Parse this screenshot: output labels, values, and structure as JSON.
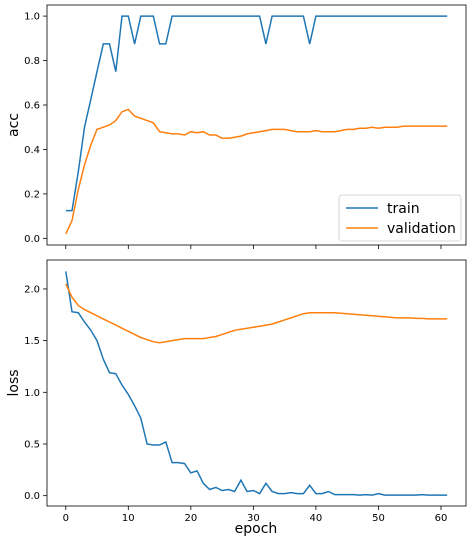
{
  "colors": {
    "train": "#1f77b4",
    "validation": "#ff7f0e"
  },
  "chart_data": [
    {
      "type": "line",
      "title": "",
      "xlabel": "",
      "ylabel": "acc",
      "xlim": [
        -3,
        64
      ],
      "ylim": [
        -0.03,
        1.05
      ],
      "xticks": [
        0,
        10,
        20,
        30,
        40,
        50,
        60
      ],
      "xticklabels_visible": false,
      "yticks": [
        0.0,
        0.2,
        0.4,
        0.6,
        0.8,
        1.0
      ],
      "yticklabels": [
        "0.0",
        "0.2",
        "0.4",
        "0.6",
        "0.8",
        "1.0"
      ],
      "grid": false,
      "legend": {
        "placement": "lower-right",
        "entries": [
          "train",
          "validation"
        ]
      },
      "series": [
        {
          "name": "train",
          "color": "#1f77b4",
          "x": [
            0,
            1,
            2,
            3,
            4,
            5,
            6,
            7,
            8,
            9,
            10,
            11,
            12,
            13,
            14,
            15,
            16,
            17,
            18,
            19,
            20,
            21,
            22,
            23,
            24,
            25,
            26,
            27,
            28,
            29,
            30,
            31,
            32,
            33,
            34,
            35,
            36,
            37,
            38,
            39,
            40,
            41,
            42,
            43,
            44,
            45,
            46,
            47,
            48,
            49,
            50,
            51,
            52,
            53,
            54,
            55,
            56,
            57,
            58,
            59,
            60,
            61
          ],
          "values": [
            0.125,
            0.125,
            0.3,
            0.5,
            0.625,
            0.75,
            0.875,
            0.875,
            0.75,
            1.0,
            1.0,
            0.875,
            1.0,
            1.0,
            1.0,
            0.875,
            0.875,
            1.0,
            1.0,
            1.0,
            1.0,
            1.0,
            1.0,
            1.0,
            1.0,
            1.0,
            1.0,
            1.0,
            1.0,
            1.0,
            1.0,
            1.0,
            0.875,
            1.0,
            1.0,
            1.0,
            1.0,
            1.0,
            1.0,
            0.875,
            1.0,
            1.0,
            1.0,
            1.0,
            1.0,
            1.0,
            1.0,
            1.0,
            1.0,
            1.0,
            1.0,
            1.0,
            1.0,
            1.0,
            1.0,
            1.0,
            1.0,
            1.0,
            1.0,
            1.0,
            1.0,
            1.0
          ]
        },
        {
          "name": "validation",
          "color": "#ff7f0e",
          "x": [
            0,
            1,
            2,
            3,
            4,
            5,
            6,
            7,
            8,
            9,
            10,
            11,
            12,
            13,
            14,
            15,
            16,
            17,
            18,
            19,
            20,
            21,
            22,
            23,
            24,
            25,
            26,
            27,
            28,
            29,
            30,
            31,
            32,
            33,
            34,
            35,
            36,
            37,
            38,
            39,
            40,
            41,
            42,
            43,
            44,
            45,
            46,
            47,
            48,
            49,
            50,
            51,
            52,
            53,
            54,
            55,
            56,
            57,
            58,
            59,
            60,
            61
          ],
          "values": [
            0.02,
            0.08,
            0.22,
            0.33,
            0.42,
            0.49,
            0.5,
            0.51,
            0.53,
            0.57,
            0.58,
            0.55,
            0.54,
            0.53,
            0.52,
            0.48,
            0.475,
            0.47,
            0.47,
            0.465,
            0.48,
            0.475,
            0.48,
            0.465,
            0.465,
            0.45,
            0.45,
            0.455,
            0.46,
            0.47,
            0.475,
            0.48,
            0.485,
            0.49,
            0.49,
            0.49,
            0.485,
            0.48,
            0.48,
            0.48,
            0.485,
            0.48,
            0.48,
            0.48,
            0.485,
            0.49,
            0.49,
            0.495,
            0.495,
            0.5,
            0.495,
            0.5,
            0.5,
            0.5,
            0.505,
            0.505,
            0.505,
            0.505,
            0.505,
            0.505,
            0.505,
            0.505
          ]
        }
      ]
    },
    {
      "type": "line",
      "title": "",
      "xlabel": "epoch",
      "ylabel": "loss",
      "xlim": [
        -3,
        64
      ],
      "ylim": [
        -0.1,
        2.28
      ],
      "xticks": [
        0,
        10,
        20,
        30,
        40,
        50,
        60
      ],
      "xticklabels": [
        "0",
        "10",
        "20",
        "30",
        "40",
        "50",
        "60"
      ],
      "yticks": [
        0.0,
        0.5,
        1.0,
        1.5,
        2.0
      ],
      "yticklabels": [
        "0.0",
        "0.5",
        "1.0",
        "1.5",
        "2.0"
      ],
      "grid": false,
      "series": [
        {
          "name": "train",
          "color": "#1f77b4",
          "x": [
            0,
            1,
            2,
            3,
            4,
            5,
            6,
            7,
            8,
            9,
            10,
            11,
            12,
            13,
            14,
            15,
            16,
            17,
            18,
            19,
            20,
            21,
            22,
            23,
            24,
            25,
            26,
            27,
            28,
            29,
            30,
            31,
            32,
            33,
            34,
            35,
            36,
            37,
            38,
            39,
            40,
            41,
            42,
            43,
            44,
            45,
            46,
            47,
            48,
            49,
            50,
            51,
            52,
            53,
            54,
            55,
            56,
            57,
            58,
            59,
            60,
            61
          ],
          "values": [
            2.17,
            1.78,
            1.77,
            1.68,
            1.6,
            1.5,
            1.32,
            1.19,
            1.18,
            1.07,
            0.98,
            0.87,
            0.75,
            0.5,
            0.49,
            0.49,
            0.52,
            0.32,
            0.32,
            0.31,
            0.22,
            0.24,
            0.12,
            0.06,
            0.08,
            0.05,
            0.06,
            0.04,
            0.15,
            0.04,
            0.05,
            0.02,
            0.12,
            0.04,
            0.02,
            0.02,
            0.03,
            0.02,
            0.02,
            0.1,
            0.02,
            0.02,
            0.04,
            0.01,
            0.01,
            0.01,
            0.01,
            0.005,
            0.01,
            0.005,
            0.02,
            0.005,
            0.005,
            0.005,
            0.005,
            0.005,
            0.005,
            0.01,
            0.005,
            0.005,
            0.005,
            0.005
          ]
        },
        {
          "name": "validation",
          "color": "#ff7f0e",
          "x": [
            0,
            1,
            2,
            3,
            4,
            5,
            6,
            7,
            8,
            9,
            10,
            11,
            12,
            13,
            14,
            15,
            16,
            17,
            18,
            19,
            20,
            21,
            22,
            23,
            24,
            25,
            26,
            27,
            28,
            29,
            30,
            31,
            32,
            33,
            34,
            35,
            36,
            37,
            38,
            39,
            40,
            41,
            42,
            43,
            44,
            45,
            46,
            47,
            48,
            49,
            50,
            51,
            52,
            53,
            54,
            55,
            56,
            57,
            58,
            59,
            60,
            61
          ],
          "values": [
            2.05,
            1.92,
            1.84,
            1.8,
            1.77,
            1.74,
            1.71,
            1.68,
            1.65,
            1.62,
            1.59,
            1.56,
            1.53,
            1.51,
            1.49,
            1.48,
            1.49,
            1.5,
            1.51,
            1.52,
            1.52,
            1.52,
            1.52,
            1.53,
            1.54,
            1.56,
            1.58,
            1.6,
            1.61,
            1.62,
            1.63,
            1.64,
            1.65,
            1.66,
            1.68,
            1.7,
            1.72,
            1.74,
            1.76,
            1.77,
            1.77,
            1.77,
            1.77,
            1.77,
            1.765,
            1.76,
            1.755,
            1.75,
            1.745,
            1.74,
            1.735,
            1.73,
            1.725,
            1.72,
            1.72,
            1.72,
            1.715,
            1.715,
            1.71,
            1.71,
            1.71,
            1.71
          ]
        }
      ]
    }
  ]
}
